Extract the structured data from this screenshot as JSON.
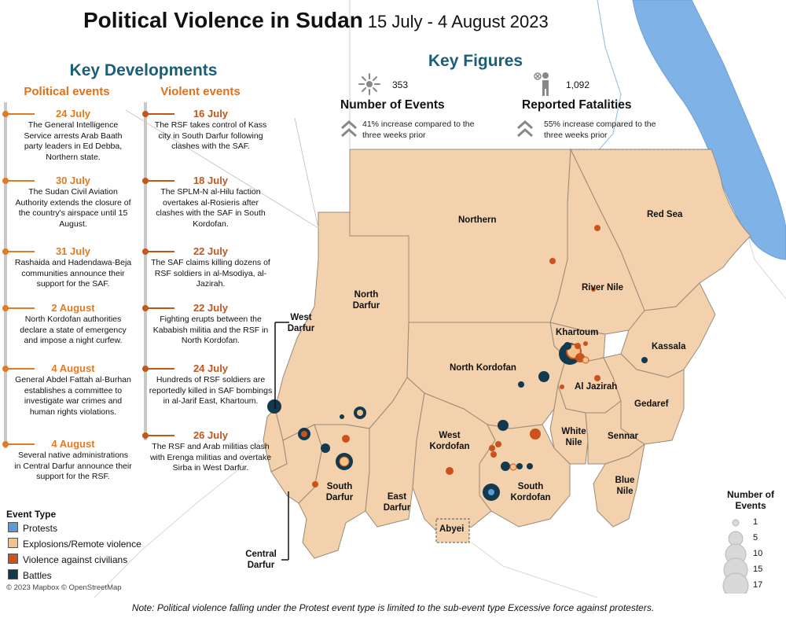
{
  "title": {
    "main": "Political Violence in Sudan",
    "sub": "15 July - 4 August 2023"
  },
  "key_developments": {
    "heading": "Key Developments",
    "political_heading": "Political events",
    "violent_heading": "Violent events",
    "political": [
      {
        "date": "24 July",
        "text": "The General Intelligence Service arrests Arab Baath party leaders in Ed Debba, Northern state."
      },
      {
        "date": "30 July",
        "text": "The Sudan Civil Aviation Authority extends the closure of the country's airspace until 15 August."
      },
      {
        "date": "31 July",
        "text": "Rashaida and Hadendawa-Beja communities announce their support for the SAF."
      },
      {
        "date": "2 August",
        "text": "North Kordofan authorities declare a state of emergency and impose a night curfew."
      },
      {
        "date": "4  August",
        "text": "General Abdel Fattah al-Burhan establishes a committee to investigate war crimes and human rights violations."
      },
      {
        "date": "4  August",
        "text": "Several native administrations in Central Darfur announce their support for the RSF."
      }
    ],
    "violent": [
      {
        "date": "16 July",
        "text": "The RSF takes control of Kass city in South Darfur following clashes with the SAF."
      },
      {
        "date": "18 July",
        "text": "The SPLM-N al-Hilu faction overtakes al-Rosieris after clashes with the SAF in South Kordofan."
      },
      {
        "date": "22 July",
        "text": "The SAF claims killing dozens of RSF soldiers in al-Msodiya, al-Jazirah."
      },
      {
        "date": "22 July",
        "text": "Fighting erupts between the Kababish militia and the RSF in North Kordofan."
      },
      {
        "date": "24 July",
        "text": "Hundreds of RSF soldiers are reportedly killed in SAF bombings in al-Jarif East, Khartoum."
      },
      {
        "date": "26 July",
        "text": "The RSF and Arab militias clash with Erenga militias and overtake Sirba in West Darfur."
      }
    ]
  },
  "key_figures": {
    "heading": "Key Figures",
    "events": {
      "icon": "burst-icon",
      "value": "353",
      "label": "Number of Events",
      "note": "41% increase compared to the three weeks prior"
    },
    "fatalities": {
      "icon": "person-icon",
      "value": "1,092",
      "label": "Reported Fatalities",
      "note": "55% increase compared to the three weeks prior"
    }
  },
  "regions": {
    "northern": "Northern",
    "red_sea": "Red Sea",
    "river_nile": "River Nile",
    "north_darfur": "North Darfur",
    "khartoum": "Khartoum",
    "kassala": "Kassala",
    "north_kordofan": "North Kordofan",
    "al_jazirah": "Al Jazirah",
    "gedaref": "Gedaref",
    "west_darfur": "West Darfur",
    "white_nile": "White Nile",
    "sennar": "Sennar",
    "west_kordofan": "West Kordofan",
    "south_darfur": "South Darfur",
    "east_darfur": "East Darfur",
    "south_kordofan": "South Kordofan",
    "blue_nile": "Blue Nile",
    "abyei": "Abyei",
    "central_darfur": "Central Darfur"
  },
  "legend": {
    "title": "Event Type",
    "items": [
      {
        "label": "Protests",
        "color": "#5b9bd5"
      },
      {
        "label": "Explosions/Remote violence",
        "color": "#f6c08a"
      },
      {
        "label": "Violence against civilians",
        "color": "#c9531a"
      },
      {
        "label": "Battles",
        "color": "#12394d"
      }
    ],
    "size_title": "Number of Events",
    "sizes": [
      "1",
      "5",
      "10",
      "15",
      "17"
    ]
  },
  "colors": {
    "land": "#f2d1ac",
    "sea": "#7fb2e6",
    "teal": "#1b5e7a",
    "orange": "#e07b1f"
  },
  "credit": "© 2023 Mapbox © OpenStreetMap",
  "note": "Note: Political violence falling under the Protest event type is limited to the sub-event type Excessive force against protesters."
}
